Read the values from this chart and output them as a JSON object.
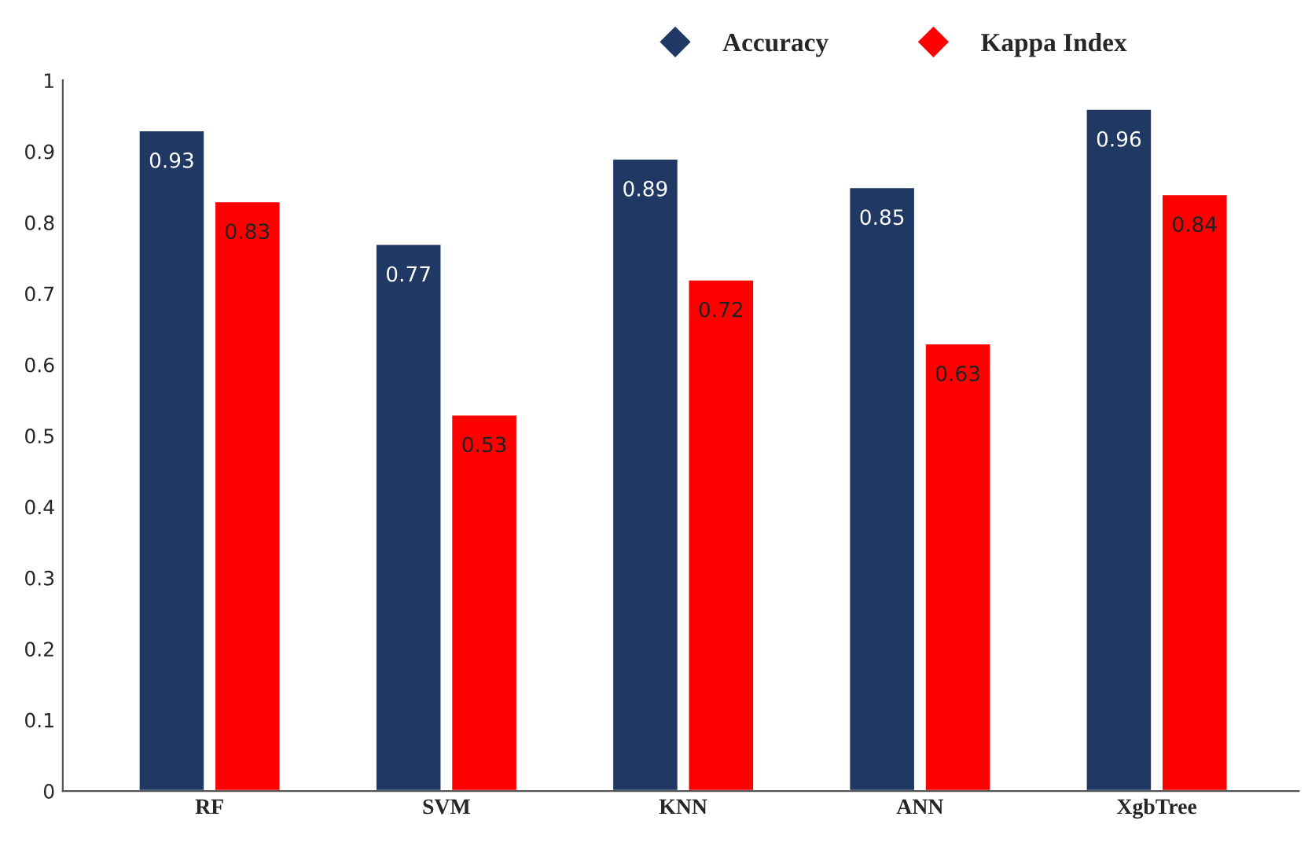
{
  "chart_data": {
    "type": "bar",
    "categories": [
      "RF",
      "SVM",
      "KNN",
      "ANN",
      "XgbTree"
    ],
    "series": [
      {
        "name": "Accuracy",
        "color": "#1f3864",
        "values": [
          0.93,
          0.77,
          0.89,
          0.85,
          0.96
        ]
      },
      {
        "name": "Kappa Index",
        "color": "#ff0000",
        "values": [
          0.83,
          0.53,
          0.72,
          0.63,
          0.84
        ]
      }
    ],
    "ylim": [
      0,
      1
    ],
    "yticks": [
      0,
      0.1,
      0.2,
      0.3,
      0.4,
      0.5,
      0.6,
      0.7,
      0.8,
      0.9,
      1
    ],
    "data_labels": true,
    "grid": false,
    "legend": "top right",
    "marker": "diamond"
  }
}
